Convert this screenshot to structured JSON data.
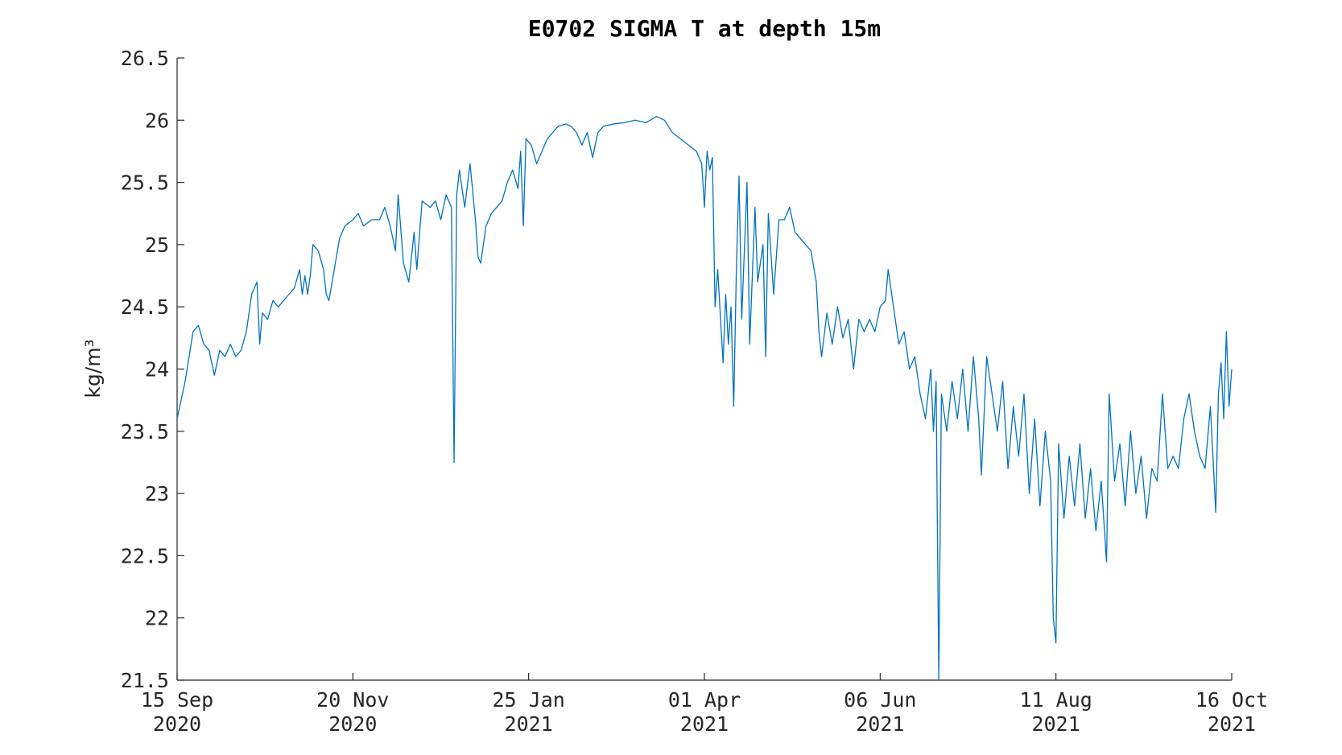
{
  "chart_data": {
    "type": "line",
    "title": "E0702 SIGMA T at depth 15m",
    "ylabel": "kg/m³",
    "color": "#0072bd",
    "xlim": [
      "2020-09-15",
      "2021-10-16"
    ],
    "ylim": [
      21.5,
      26.5
    ],
    "yticks": [
      21.5,
      22,
      22.5,
      23,
      23.5,
      24,
      24.5,
      25,
      25.5,
      26,
      26.5
    ],
    "xticks": [
      {
        "value": "2020-09-15",
        "label": [
          "15 Sep",
          "2020"
        ]
      },
      {
        "value": "2020-11-20",
        "label": [
          "20 Nov",
          "2020"
        ]
      },
      {
        "value": "2021-01-25",
        "label": [
          "25 Jan",
          "2021"
        ]
      },
      {
        "value": "2021-04-01",
        "label": [
          "01 Apr",
          "2021"
        ]
      },
      {
        "value": "2021-06-06",
        "label": [
          "06 Jun",
          "2021"
        ]
      },
      {
        "value": "2021-08-11",
        "label": [
          "11 Aug",
          "2021"
        ]
      },
      {
        "value": "2021-10-16",
        "label": [
          "16 Oct",
          "2021"
        ]
      }
    ],
    "x": [
      "2020-09-15",
      "2020-09-18",
      "2020-09-21",
      "2020-09-23",
      "2020-09-25",
      "2020-09-27",
      "2020-09-29",
      "2020-10-01",
      "2020-10-03",
      "2020-10-05",
      "2020-10-07",
      "2020-10-09",
      "2020-10-11",
      "2020-10-13",
      "2020-10-15",
      "2020-10-16",
      "2020-10-17",
      "2020-10-19",
      "2020-10-21",
      "2020-10-23",
      "2020-10-25",
      "2020-10-27",
      "2020-10-29",
      "2020-10-31",
      "2020-11-01",
      "2020-11-02",
      "2020-11-03",
      "2020-11-04",
      "2020-11-05",
      "2020-11-07",
      "2020-11-09",
      "2020-11-10",
      "2020-11-11",
      "2020-11-13",
      "2020-11-15",
      "2020-11-17",
      "2020-11-20",
      "2020-11-22",
      "2020-11-24",
      "2020-11-27",
      "2020-11-30",
      "2020-12-02",
      "2020-12-04",
      "2020-12-06",
      "2020-12-07",
      "2020-12-09",
      "2020-12-11",
      "2020-12-13",
      "2020-12-14",
      "2020-12-16",
      "2020-12-19",
      "2020-12-21",
      "2020-12-23",
      "2020-12-25",
      "2020-12-27",
      "2020-12-28",
      "2020-12-29",
      "2020-12-30",
      "2021-01-01",
      "2021-01-03",
      "2021-01-05",
      "2021-01-06",
      "2021-01-07",
      "2021-01-09",
      "2021-01-11",
      "2021-01-13",
      "2021-01-15",
      "2021-01-17",
      "2021-01-19",
      "2021-01-21",
      "2021-01-22",
      "2021-01-23",
      "2021-01-24",
      "2021-01-26",
      "2021-01-28",
      "2021-01-30",
      "2021-02-01",
      "2021-02-03",
      "2021-02-05",
      "2021-02-08",
      "2021-02-10",
      "2021-02-12",
      "2021-02-14",
      "2021-02-16",
      "2021-02-18",
      "2021-02-20",
      "2021-02-22",
      "2021-02-26",
      "2021-03-02",
      "2021-03-06",
      "2021-03-10",
      "2021-03-14",
      "2021-03-17",
      "2021-03-20",
      "2021-03-23",
      "2021-03-26",
      "2021-03-29",
      "2021-03-31",
      "2021-04-01",
      "2021-04-02",
      "2021-04-03",
      "2021-04-04",
      "2021-04-05",
      "2021-04-06",
      "2021-04-08",
      "2021-04-09",
      "2021-04-10",
      "2021-04-11",
      "2021-04-12",
      "2021-04-13",
      "2021-04-14",
      "2021-04-15",
      "2021-04-17",
      "2021-04-18",
      "2021-04-20",
      "2021-04-21",
      "2021-04-23",
      "2021-04-24",
      "2021-04-25",
      "2021-04-27",
      "2021-04-29",
      "2021-05-01",
      "2021-05-03",
      "2021-05-05",
      "2021-05-07",
      "2021-05-09",
      "2021-05-11",
      "2021-05-13",
      "2021-05-14",
      "2021-05-15",
      "2021-05-17",
      "2021-05-19",
      "2021-05-21",
      "2021-05-23",
      "2021-05-25",
      "2021-05-27",
      "2021-05-29",
      "2021-05-31",
      "2021-06-02",
      "2021-06-04",
      "2021-06-06",
      "2021-06-08",
      "2021-06-09",
      "2021-06-11",
      "2021-06-13",
      "2021-06-15",
      "2021-06-17",
      "2021-06-19",
      "2021-06-21",
      "2021-06-23",
      "2021-06-25",
      "2021-06-26",
      "2021-06-27",
      "2021-06-28",
      "2021-06-29",
      "2021-07-01",
      "2021-07-03",
      "2021-07-05",
      "2021-07-07",
      "2021-07-09",
      "2021-07-11",
      "2021-07-13",
      "2021-07-14",
      "2021-07-16",
      "2021-07-18",
      "2021-07-20",
      "2021-07-22",
      "2021-07-24",
      "2021-07-26",
      "2021-07-28",
      "2021-07-30",
      "2021-08-01",
      "2021-08-03",
      "2021-08-05",
      "2021-08-07",
      "2021-08-09",
      "2021-08-10",
      "2021-08-11",
      "2021-08-12",
      "2021-08-14",
      "2021-08-16",
      "2021-08-18",
      "2021-08-20",
      "2021-08-22",
      "2021-08-24",
      "2021-08-26",
      "2021-08-28",
      "2021-08-30",
      "2021-08-31",
      "2021-09-02",
      "2021-09-04",
      "2021-09-06",
      "2021-09-08",
      "2021-09-10",
      "2021-09-12",
      "2021-09-14",
      "2021-09-16",
      "2021-09-18",
      "2021-09-20",
      "2021-09-22",
      "2021-09-24",
      "2021-09-26",
      "2021-09-28",
      "2021-09-30",
      "2021-10-02",
      "2021-10-04",
      "2021-10-06",
      "2021-10-08",
      "2021-10-10",
      "2021-10-11",
      "2021-10-12",
      "2021-10-13",
      "2021-10-14",
      "2021-10-15",
      "2021-10-16"
    ],
    "values": [
      23.6,
      23.9,
      24.3,
      24.35,
      24.2,
      24.15,
      23.95,
      24.15,
      24.1,
      24.2,
      24.1,
      24.15,
      24.3,
      24.6,
      24.7,
      24.2,
      24.45,
      24.4,
      24.55,
      24.5,
      24.55,
      24.6,
      24.65,
      24.8,
      24.6,
      24.75,
      24.6,
      24.75,
      25.0,
      24.95,
      24.8,
      24.6,
      24.55,
      24.8,
      25.05,
      25.15,
      25.2,
      25.25,
      25.15,
      25.2,
      25.2,
      25.3,
      25.15,
      24.95,
      25.4,
      24.85,
      24.7,
      25.1,
      24.8,
      25.35,
      25.3,
      25.35,
      25.2,
      25.4,
      25.3,
      23.25,
      25.4,
      25.6,
      25.3,
      25.65,
      25.2,
      24.9,
      24.85,
      25.15,
      25.25,
      25.3,
      25.35,
      25.5,
      25.6,
      25.45,
      25.75,
      25.15,
      25.85,
      25.8,
      25.65,
      25.75,
      25.85,
      25.9,
      25.95,
      25.97,
      25.95,
      25.9,
      25.8,
      25.9,
      25.7,
      25.9,
      25.95,
      25.97,
      25.98,
      26.0,
      25.98,
      26.03,
      26.0,
      25.9,
      25.85,
      25.8,
      25.75,
      25.65,
      25.3,
      25.75,
      25.6,
      25.7,
      24.5,
      24.8,
      24.05,
      24.6,
      24.2,
      24.5,
      23.7,
      24.8,
      25.55,
      24.4,
      25.5,
      24.2,
      25.3,
      24.7,
      25.0,
      24.1,
      25.25,
      24.6,
      25.2,
      25.2,
      25.3,
      25.1,
      25.05,
      25.0,
      24.95,
      24.7,
      24.3,
      24.1,
      24.45,
      24.2,
      24.5,
      24.25,
      24.4,
      24.0,
      24.4,
      24.3,
      24.4,
      24.3,
      24.5,
      24.55,
      24.8,
      24.5,
      24.2,
      24.3,
      24.0,
      24.1,
      23.8,
      23.6,
      24.0,
      23.5,
      23.9,
      21.5,
      23.8,
      23.5,
      23.9,
      23.6,
      24.0,
      23.5,
      24.1,
      23.6,
      23.15,
      24.1,
      23.8,
      23.5,
      23.9,
      23.2,
      23.7,
      23.3,
      23.8,
      23.0,
      23.6,
      22.9,
      23.5,
      23.1,
      22.0,
      21.8,
      23.4,
      22.8,
      23.3,
      22.9,
      23.4,
      22.8,
      23.2,
      22.7,
      23.1,
      22.45,
      23.8,
      23.1,
      23.4,
      22.9,
      23.5,
      23.0,
      23.3,
      22.8,
      23.2,
      23.1,
      23.8,
      23.2,
      23.3,
      23.2,
      23.6,
      23.8,
      23.5,
      23.3,
      23.2,
      23.7,
      22.85,
      23.8,
      24.05,
      23.6,
      24.3,
      23.7,
      24.0
    ]
  }
}
